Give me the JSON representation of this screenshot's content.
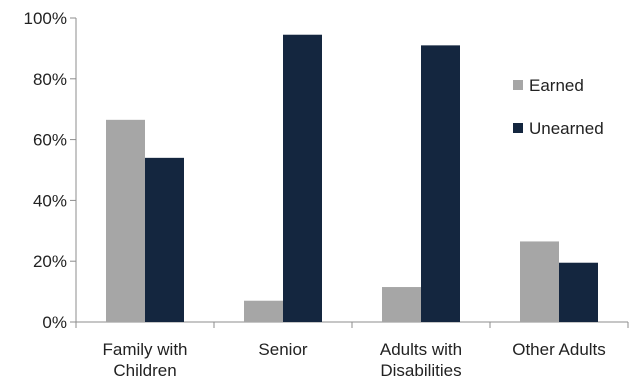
{
  "chart_data": {
    "type": "bar",
    "categories": [
      [
        "Family with",
        "Children"
      ],
      [
        "Senior"
      ],
      [
        "Adults with",
        "Disabilities"
      ],
      [
        "Other Adults"
      ]
    ],
    "series": [
      {
        "name": "Earned",
        "color": "#a6a6a6",
        "values": [
          66.5,
          7,
          11.5,
          26.5
        ]
      },
      {
        "name": "Unearned",
        "color": "#14263f",
        "values": [
          54,
          94.5,
          91,
          19.5
        ]
      }
    ],
    "y_ticks": [
      "0%",
      "20%",
      "40%",
      "60%",
      "80%",
      "100%"
    ],
    "ylim": [
      0,
      100
    ],
    "legend_position": "right",
    "grid": false
  }
}
